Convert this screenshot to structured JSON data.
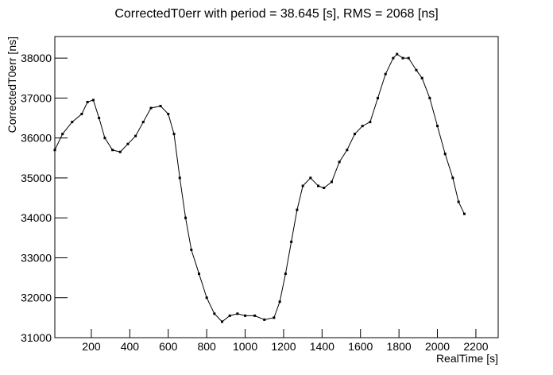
{
  "chart_data": {
    "type": "scatter",
    "title": "CorrectedT0err with period = 38.645 [s], RMS = 2068 [ns]",
    "x_label": "RealTime [s]",
    "y_label": "CorrectedT0err [ns]",
    "color": "#000000",
    "x": [
      10,
      50,
      100,
      150,
      180,
      210,
      240,
      270,
      310,
      350,
      390,
      430,
      470,
      510,
      560,
      600,
      630,
      660,
      690,
      720,
      760,
      800,
      840,
      880,
      920,
      960,
      1000,
      1050,
      1100,
      1150,
      1180,
      1210,
      1240,
      1270,
      1300,
      1340,
      1380,
      1410,
      1450,
      1490,
      1530,
      1570,
      1610,
      1650,
      1690,
      1730,
      1770,
      1790,
      1820,
      1850,
      1890,
      1920,
      1960,
      2000,
      2040,
      2080,
      2110,
      2140
    ],
    "values": [
      35700,
      36100,
      36400,
      36600,
      36900,
      36950,
      36500,
      36000,
      35700,
      35650,
      35850,
      36050,
      36400,
      36750,
      36800,
      36600,
      36100,
      35000,
      34000,
      33200,
      32600,
      32000,
      31600,
      31400,
      31550,
      31600,
      31550,
      31550,
      31450,
      31500,
      31900,
      32600,
      33400,
      34200,
      34800,
      35000,
      34800,
      34750,
      34900,
      35400,
      35700,
      36100,
      36300,
      36400,
      37000,
      37600,
      38000,
      38100,
      38000,
      38000,
      37700,
      37500,
      37000,
      36300,
      35600,
      35000,
      34400,
      34100
    ],
    "xlim": [
      10,
      2316
    ],
    "ylim": [
      31000,
      38540
    ],
    "xticks": [
      200,
      400,
      600,
      800,
      1000,
      1200,
      1400,
      1600,
      1800,
      2000,
      2200
    ],
    "yticks": [
      31000,
      32000,
      33000,
      34000,
      35000,
      36000,
      37000,
      38000
    ]
  }
}
